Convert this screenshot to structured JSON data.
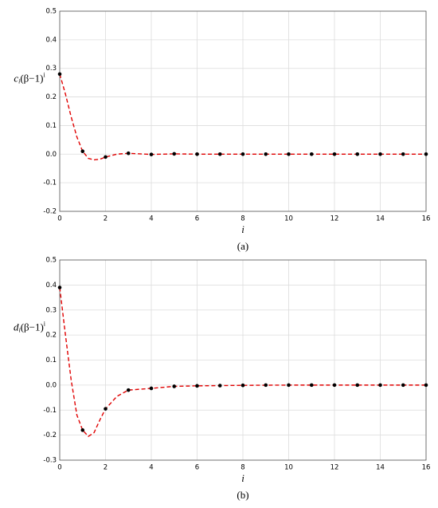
{
  "chart_data": [
    {
      "type": "line",
      "caption": "(a)",
      "xlabel": "i",
      "ylabel": {
        "base": "c",
        "sub": "i",
        "mid": "(β−1)",
        "sup": "i"
      },
      "xlim": [
        0,
        16
      ],
      "xticks": [
        0,
        2,
        4,
        6,
        8,
        10,
        12,
        14,
        16
      ],
      "ylim": [
        -0.2,
        0.5
      ],
      "yticks": [
        -0.2,
        -0.1,
        {
          "value": 0,
          "label": "0.0"
        },
        0.1,
        0.2,
        0.3,
        0.4,
        0.5
      ],
      "grid": true,
      "points": {
        "color": "#000000",
        "x": [
          0,
          1,
          2,
          3,
          4,
          5,
          6,
          7,
          8,
          9,
          10,
          11,
          12,
          13,
          14,
          15,
          16
        ],
        "values": [
          0.28,
          0.01,
          -0.01,
          0.003,
          -0.001,
          0.001,
          0,
          0,
          0,
          0,
          0,
          0,
          0,
          0,
          0,
          0,
          0
        ]
      },
      "curve": {
        "color": "#e00000",
        "dashed": true,
        "x": [
          0,
          0.25,
          0.5,
          0.75,
          1,
          1.25,
          1.5,
          1.75,
          2,
          2.5,
          3,
          3.5,
          4,
          5,
          6,
          8,
          10,
          12,
          14,
          16
        ],
        "values": [
          0.28,
          0.21,
          0.13,
          0.06,
          0.01,
          -0.015,
          -0.02,
          -0.018,
          -0.01,
          0,
          0.003,
          0.001,
          -0.001,
          0.001,
          0,
          0,
          0,
          0,
          0,
          0
        ]
      }
    },
    {
      "type": "line",
      "caption": "(b)",
      "xlabel": "i",
      "ylabel": {
        "base": "d",
        "sub": "i",
        "mid": "(β−1)",
        "sup": "i"
      },
      "xlim": [
        0,
        16
      ],
      "xticks": [
        0,
        2,
        4,
        6,
        8,
        10,
        12,
        14,
        16
      ],
      "ylim": [
        -0.3,
        0.5
      ],
      "yticks": [
        -0.3,
        -0.2,
        -0.1,
        {
          "value": 0,
          "label": "0.0"
        },
        0.1,
        0.2,
        0.3,
        0.4,
        0.5
      ],
      "grid": true,
      "points": {
        "color": "#000000",
        "x": [
          0,
          1,
          2,
          3,
          4,
          5,
          6,
          7,
          8,
          9,
          10,
          11,
          12,
          13,
          14,
          15,
          16
        ],
        "values": [
          0.39,
          -0.18,
          -0.095,
          -0.02,
          -0.013,
          -0.005,
          -0.003,
          -0.002,
          -0.001,
          0,
          0,
          0,
          0,
          0,
          0,
          0,
          0
        ]
      },
      "curve": {
        "color": "#e00000",
        "dashed": true,
        "x": [
          0,
          0.25,
          0.5,
          0.75,
          1,
          1.25,
          1.5,
          1.75,
          2,
          2.5,
          3,
          4,
          5,
          6,
          7,
          8,
          10,
          12,
          14,
          16
        ],
        "values": [
          0.39,
          0.2,
          0.02,
          -0.12,
          -0.18,
          -0.205,
          -0.19,
          -0.14,
          -0.095,
          -0.045,
          -0.02,
          -0.013,
          -0.005,
          -0.003,
          -0.002,
          -0.001,
          0,
          0,
          0,
          0
        ]
      }
    }
  ]
}
